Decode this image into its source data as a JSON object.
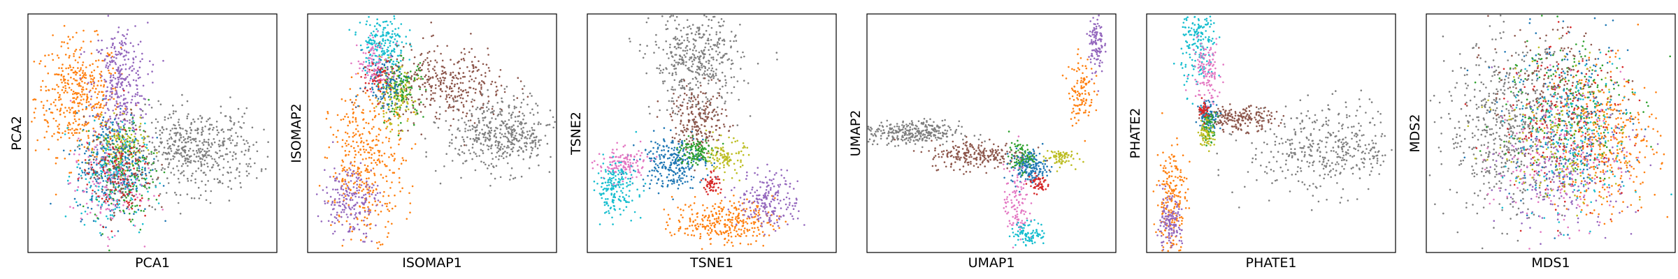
{
  "palette": {
    "blue": "#1f77b4",
    "orange": "#ff7f0e",
    "green": "#2ca02c",
    "red": "#d62728",
    "purple": "#9467bd",
    "brown": "#8c564b",
    "pink": "#e377c2",
    "gray": "#7f7f7f",
    "olive": "#bcbd22",
    "cyan": "#17becf"
  },
  "chart_data": [
    {
      "type": "scatter",
      "title": "",
      "xlabel": "PCA1",
      "ylabel": "PCA2",
      "xticks": [],
      "yticks": [],
      "grid": false,
      "legend": null,
      "xlim": [
        0,
        10
      ],
      "ylim": [
        0,
        10
      ],
      "clusters": [
        {
          "color": "orange",
          "cx": 2.0,
          "cy": 6.5,
          "sx": 0.85,
          "sy": 1.2,
          "n": 420
        },
        {
          "color": "purple",
          "cx": 3.7,
          "cy": 7.0,
          "sx": 0.55,
          "sy": 1.3,
          "n": 340
        },
        {
          "color": "gray",
          "cx": 6.7,
          "cy": 4.3,
          "sx": 1.25,
          "sy": 0.85,
          "n": 520
        },
        {
          "color": "olive",
          "cx": 3.7,
          "cy": 4.4,
          "sx": 0.5,
          "sy": 0.55,
          "n": 150
        },
        {
          "color": "cyan",
          "cx": 3.3,
          "cy": 3.2,
          "sx": 0.7,
          "sy": 1.1,
          "n": 200
        },
        {
          "color": "blue",
          "cx": 3.4,
          "cy": 3.7,
          "sx": 0.75,
          "sy": 1.1,
          "n": 280
        },
        {
          "color": "green",
          "cx": 3.9,
          "cy": 3.4,
          "sx": 0.6,
          "sy": 1.1,
          "n": 160
        },
        {
          "color": "pink",
          "cx": 3.1,
          "cy": 2.8,
          "sx": 0.7,
          "sy": 1.0,
          "n": 150
        },
        {
          "color": "red",
          "cx": 3.6,
          "cy": 3.2,
          "sx": 0.7,
          "sy": 1.0,
          "n": 110
        },
        {
          "color": "brown",
          "cx": 3.7,
          "cy": 3.6,
          "sx": 0.7,
          "sy": 1.0,
          "n": 100
        }
      ]
    },
    {
      "type": "scatter",
      "title": "",
      "xlabel": "ISOMAP1",
      "ylabel": "ISOMAP2",
      "xticks": [],
      "yticks": [],
      "grid": false,
      "legend": null,
      "xlim": [
        0,
        10
      ],
      "ylim": [
        0,
        10
      ],
      "clusters": [
        {
          "color": "cyan",
          "cx": 3.0,
          "cy": 8.8,
          "sx": 0.45,
          "sy": 0.6,
          "n": 200
        },
        {
          "color": "brown",
          "cx": 5.5,
          "cy": 7.0,
          "sx": 1.3,
          "sy": 0.8,
          "n": 380
        },
        {
          "color": "gray",
          "cx": 7.8,
          "cy": 4.9,
          "sx": 1.1,
          "sy": 0.75,
          "n": 460
        },
        {
          "color": "orange",
          "cx": 2.4,
          "cy": 3.8,
          "sx": 0.75,
          "sy": 1.5,
          "n": 380
        },
        {
          "color": "purple",
          "cx": 1.7,
          "cy": 2.2,
          "sx": 0.55,
          "sy": 0.8,
          "n": 200
        },
        {
          "color": "olive",
          "cx": 3.5,
          "cy": 6.5,
          "sx": 0.4,
          "sy": 0.6,
          "n": 130
        },
        {
          "color": "green",
          "cx": 3.8,
          "cy": 6.9,
          "sx": 0.45,
          "sy": 0.6,
          "n": 110
        },
        {
          "color": "blue",
          "cx": 3.1,
          "cy": 7.2,
          "sx": 0.45,
          "sy": 0.6,
          "n": 110
        },
        {
          "color": "red",
          "cx": 2.8,
          "cy": 7.4,
          "sx": 0.3,
          "sy": 0.35,
          "n": 60
        },
        {
          "color": "pink",
          "cx": 2.7,
          "cy": 7.9,
          "sx": 0.35,
          "sy": 0.5,
          "n": 80
        }
      ]
    },
    {
      "type": "scatter",
      "title": "",
      "xlabel": "TSNE1",
      "ylabel": "TSNE2",
      "xticks": [],
      "yticks": [],
      "grid": false,
      "legend": null,
      "xlim": [
        0,
        10
      ],
      "ylim": [
        0,
        10
      ],
      "clusters": [
        {
          "color": "gray",
          "cx": 4.4,
          "cy": 8.0,
          "sx": 0.9,
          "sy": 1.1,
          "n": 460
        },
        {
          "color": "brown",
          "cx": 4.5,
          "cy": 5.5,
          "sx": 0.55,
          "sy": 0.7,
          "n": 220
        },
        {
          "color": "blue",
          "cx": 3.4,
          "cy": 3.8,
          "sx": 0.65,
          "sy": 0.55,
          "n": 260
        },
        {
          "color": "green",
          "cx": 4.3,
          "cy": 4.2,
          "sx": 0.35,
          "sy": 0.3,
          "n": 110
        },
        {
          "color": "olive",
          "cx": 5.6,
          "cy": 4.0,
          "sx": 0.35,
          "sy": 0.35,
          "n": 110
        },
        {
          "color": "red",
          "cx": 5.0,
          "cy": 2.9,
          "sx": 0.18,
          "sy": 0.22,
          "n": 50
        },
        {
          "color": "pink",
          "cx": 1.4,
          "cy": 3.7,
          "sx": 0.5,
          "sy": 0.35,
          "n": 130
        },
        {
          "color": "cyan",
          "cx": 1.1,
          "cy": 2.7,
          "sx": 0.45,
          "sy": 0.55,
          "n": 180
        },
        {
          "color": "orange",
          "cx": 5.5,
          "cy": 1.3,
          "sx": 1.0,
          "sy": 0.45,
          "n": 300
        },
        {
          "color": "purple",
          "cx": 7.3,
          "cy": 2.2,
          "sx": 0.6,
          "sy": 0.6,
          "n": 200
        }
      ]
    },
    {
      "type": "scatter",
      "title": "",
      "xlabel": "UMAP1",
      "ylabel": "UMAP2",
      "xticks": [],
      "yticks": [],
      "grid": false,
      "legend": null,
      "xlim": [
        0,
        10
      ],
      "ylim": [
        0,
        10
      ],
      "clusters": [
        {
          "color": "gray",
          "cx": 1.7,
          "cy": 5.0,
          "sx": 1.0,
          "sy": 0.25,
          "n": 330
        },
        {
          "color": "brown",
          "cx": 4.5,
          "cy": 4.1,
          "sx": 1.0,
          "sy": 0.3,
          "n": 240
        },
        {
          "color": "blue",
          "cx": 6.5,
          "cy": 3.6,
          "sx": 0.35,
          "sy": 0.35,
          "n": 180
        },
        {
          "color": "green",
          "cx": 6.2,
          "cy": 4.0,
          "sx": 0.25,
          "sy": 0.3,
          "n": 70
        },
        {
          "color": "olive",
          "cx": 7.7,
          "cy": 4.0,
          "sx": 0.3,
          "sy": 0.2,
          "n": 70
        },
        {
          "color": "red",
          "cx": 6.9,
          "cy": 2.9,
          "sx": 0.22,
          "sy": 0.2,
          "n": 50
        },
        {
          "color": "pink",
          "cx": 6.0,
          "cy": 2.0,
          "sx": 0.25,
          "sy": 0.8,
          "n": 110
        },
        {
          "color": "cyan",
          "cx": 6.5,
          "cy": 0.8,
          "sx": 0.35,
          "sy": 0.25,
          "n": 90
        },
        {
          "color": "orange",
          "cx": 8.6,
          "cy": 6.8,
          "sx": 0.25,
          "sy": 0.7,
          "n": 110
        },
        {
          "color": "purple",
          "cx": 9.2,
          "cy": 8.8,
          "sx": 0.15,
          "sy": 0.65,
          "n": 110
        }
      ]
    },
    {
      "type": "scatter",
      "title": "",
      "xlabel": "PHATE1",
      "ylabel": "PHATE2",
      "xticks": [],
      "yticks": [],
      "grid": false,
      "legend": null,
      "xlim": [
        0,
        10
      ],
      "ylim": [
        0,
        10
      ],
      "clusters": [
        {
          "color": "cyan",
          "cx": 2.1,
          "cy": 8.8,
          "sx": 0.35,
          "sy": 1.0,
          "n": 200
        },
        {
          "color": "pink",
          "cx": 2.4,
          "cy": 7.6,
          "sx": 0.3,
          "sy": 0.7,
          "n": 120
        },
        {
          "color": "gray",
          "cx": 7.3,
          "cy": 4.3,
          "sx": 1.6,
          "sy": 0.9,
          "n": 420
        },
        {
          "color": "brown",
          "cx": 3.7,
          "cy": 5.6,
          "sx": 0.7,
          "sy": 0.25,
          "n": 200
        },
        {
          "color": "blue",
          "cx": 2.5,
          "cy": 5.7,
          "sx": 0.2,
          "sy": 0.35,
          "n": 100
        },
        {
          "color": "green",
          "cx": 2.5,
          "cy": 5.3,
          "sx": 0.15,
          "sy": 0.3,
          "n": 60
        },
        {
          "color": "olive",
          "cx": 2.4,
          "cy": 5.0,
          "sx": 0.15,
          "sy": 0.3,
          "n": 60
        },
        {
          "color": "red",
          "cx": 2.3,
          "cy": 6.0,
          "sx": 0.1,
          "sy": 0.2,
          "n": 40
        },
        {
          "color": "orange",
          "cx": 1.0,
          "cy": 2.2,
          "sx": 0.3,
          "sy": 1.2,
          "n": 200
        },
        {
          "color": "purple",
          "cx": 0.9,
          "cy": 1.1,
          "sx": 0.25,
          "sy": 0.6,
          "n": 140
        }
      ]
    },
    {
      "type": "scatter",
      "title": "",
      "xlabel": "MDS1",
      "ylabel": "MDS2",
      "xticks": [],
      "yticks": [],
      "grid": false,
      "legend": null,
      "xlim": [
        0,
        10
      ],
      "ylim": [
        0,
        10
      ],
      "clusters": [
        {
          "color": "gray",
          "cx": 3.2,
          "cy": 5.2,
          "sx": 1.2,
          "sy": 1.8,
          "n": 560
        },
        {
          "color": "orange",
          "cx": 7.3,
          "cy": 4.6,
          "sx": 1.0,
          "sy": 1.5,
          "n": 360
        },
        {
          "color": "blue",
          "cx": 5.6,
          "cy": 5.6,
          "sx": 1.3,
          "sy": 1.7,
          "n": 240
        },
        {
          "color": "green",
          "cx": 5.5,
          "cy": 6.3,
          "sx": 1.3,
          "sy": 1.6,
          "n": 200
        },
        {
          "color": "purple",
          "cx": 5.7,
          "cy": 3.3,
          "sx": 1.3,
          "sy": 1.4,
          "n": 220
        },
        {
          "color": "red",
          "cx": 5.5,
          "cy": 5.6,
          "sx": 1.3,
          "sy": 1.7,
          "n": 180
        },
        {
          "color": "brown",
          "cx": 5.0,
          "cy": 6.7,
          "sx": 1.2,
          "sy": 1.4,
          "n": 170
        },
        {
          "color": "pink",
          "cx": 5.3,
          "cy": 4.0,
          "sx": 1.3,
          "sy": 1.5,
          "n": 170
        },
        {
          "color": "olive",
          "cx": 5.5,
          "cy": 5.0,
          "sx": 1.3,
          "sy": 1.6,
          "n": 170
        },
        {
          "color": "cyan",
          "cx": 5.9,
          "cy": 4.6,
          "sx": 1.3,
          "sy": 1.6,
          "n": 170
        }
      ]
    }
  ]
}
